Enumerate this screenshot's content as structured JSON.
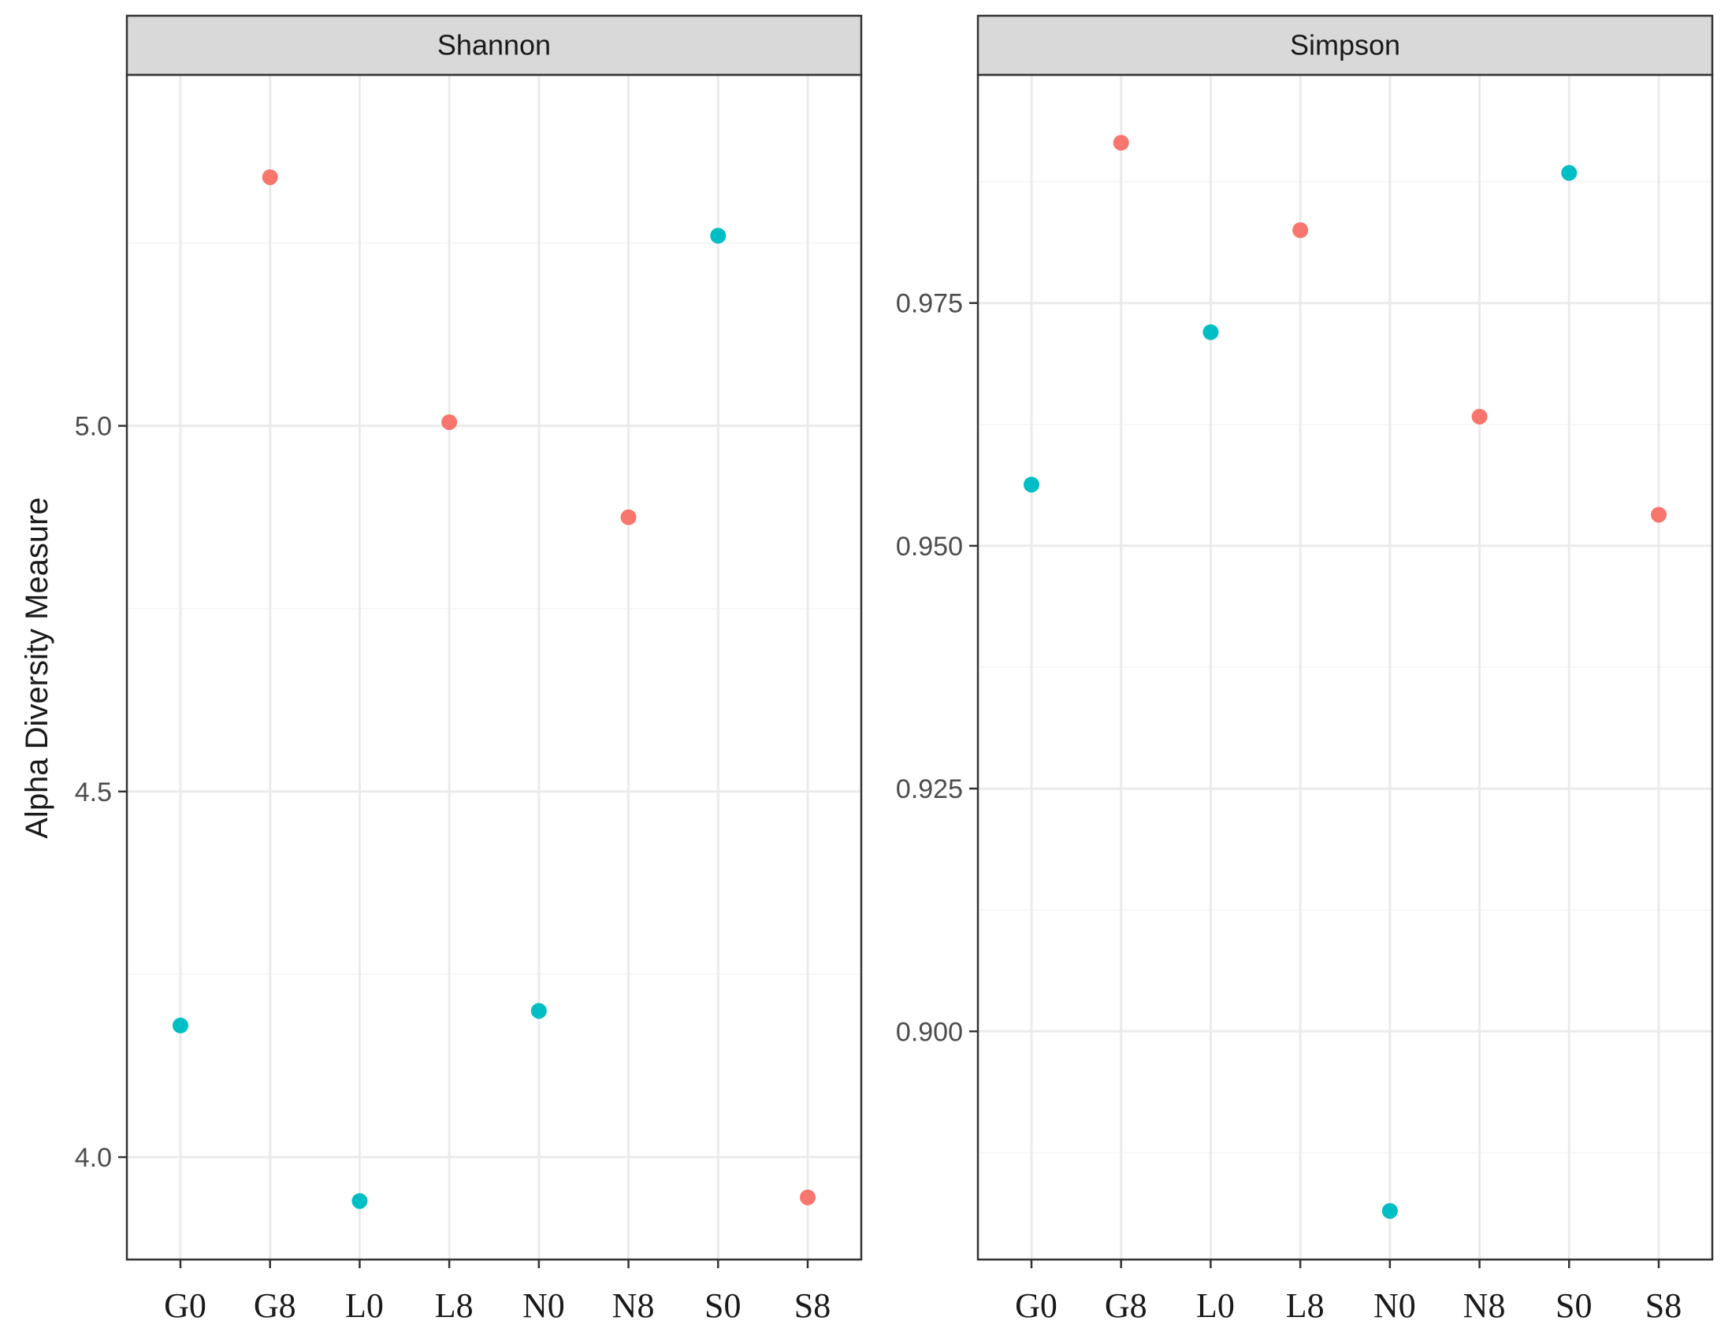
{
  "chart_data": {
    "type": "scatter",
    "ylabel": "Alpha Diversity Measure",
    "xlabel": "",
    "categories": [
      "G0",
      "G8",
      "L0",
      "L8",
      "N0",
      "N8",
      "S0",
      "S8"
    ],
    "colors": {
      "day0": "#00BFC4",
      "day8": "#F8766D",
      "strip_background": "#D9D9D9",
      "grid_major": "#EBEBEB",
      "grid_minor": "#F5F5F5",
      "panel_border": "#333333"
    },
    "panels": [
      {
        "strip_label": "Shannon",
        "ylim": [
          3.86,
          5.48
        ],
        "yticks": [
          4.0,
          4.5,
          5.0
        ],
        "ytick_labels": [
          "4.0",
          "4.5",
          "5.0"
        ],
        "yminor": [
          4.25,
          4.75,
          5.25
        ],
        "points": [
          {
            "x": "G0",
            "y": 4.18,
            "group": "day0"
          },
          {
            "x": "G8",
            "y": 5.34,
            "group": "day8"
          },
          {
            "x": "L0",
            "y": 3.94,
            "group": "day0"
          },
          {
            "x": "L8",
            "y": 5.005,
            "group": "day8"
          },
          {
            "x": "N0",
            "y": 4.2,
            "group": "day0"
          },
          {
            "x": "N8",
            "y": 4.875,
            "group": "day8"
          },
          {
            "x": "S0",
            "y": 5.26,
            "group": "day0"
          },
          {
            "x": "S8",
            "y": 3.945,
            "group": "day8"
          }
        ]
      },
      {
        "strip_label": "Simpson",
        "ylim": [
          0.8765,
          0.9985
        ],
        "yticks": [
          0.9,
          0.925,
          0.95,
          0.975
        ],
        "ytick_labels": [
          "0.900",
          "0.925",
          "0.950",
          "0.975"
        ],
        "yminor": [
          0.8875,
          0.9125,
          0.9375,
          0.9625,
          0.9875
        ],
        "points": [
          {
            "x": "G0",
            "y": 0.9563,
            "group": "day0"
          },
          {
            "x": "G8",
            "y": 0.9915,
            "group": "day8"
          },
          {
            "x": "L0",
            "y": 0.972,
            "group": "day0"
          },
          {
            "x": "L8",
            "y": 0.9825,
            "group": "day8"
          },
          {
            "x": "N0",
            "y": 0.8815,
            "group": "day0"
          },
          {
            "x": "N8",
            "y": 0.9633,
            "group": "day8"
          },
          {
            "x": "S0",
            "y": 0.9884,
            "group": "day0"
          },
          {
            "x": "S8",
            "y": 0.9532,
            "group": "day8"
          }
        ]
      }
    ]
  }
}
